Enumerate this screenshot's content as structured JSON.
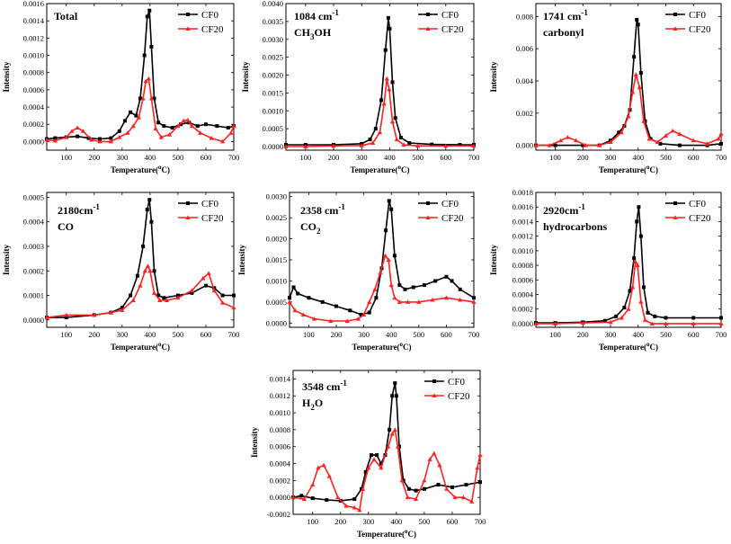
{
  "figure_colors": {
    "CF0": "#000000",
    "CF20": "#ff2020"
  },
  "chart_data": [
    {
      "type": "line",
      "panel": "total",
      "annotation": [
        "Total"
      ],
      "xlabel": "Temperature(°C)",
      "ylabel": "Intensity",
      "xlim": [
        30,
        700
      ],
      "xticks": [
        100,
        200,
        300,
        400,
        500,
        600,
        700
      ],
      "ylim": [
        -0.0001,
        0.0016
      ],
      "yticks": [
        0.0,
        0.0002,
        0.0004,
        0.0006,
        0.0008,
        0.001,
        0.0012,
        0.0014,
        0.0016
      ],
      "ytick_labels": [
        "0.0000",
        "0.0002",
        "0.0004",
        "0.0006",
        "0.0008",
        "0.0010",
        "0.0012",
        "0.0014",
        "0.0016"
      ],
      "legend_position": "top-right",
      "series": [
        {
          "name": "CF0",
          "color": "#000000",
          "x": [
            30,
            60,
            100,
            140,
            180,
            220,
            260,
            290,
            310,
            330,
            350,
            365,
            380,
            390,
            398,
            405,
            415,
            430,
            450,
            480,
            510,
            540,
            570,
            600,
            640,
            680,
            700
          ],
          "values": [
            3e-05,
            4e-05,
            5e-05,
            6e-05,
            4e-05,
            3e-05,
            4e-05,
            0.00012,
            0.00024,
            0.00034,
            0.0003,
            0.0005,
            0.001,
            0.00145,
            0.00152,
            0.0011,
            0.0005,
            0.00022,
            0.00018,
            0.00016,
            0.0002,
            0.00022,
            0.00018,
            0.0002,
            0.00018,
            0.00016,
            0.00018
          ]
        },
        {
          "name": "CF20",
          "color": "#ff2020",
          "x": [
            30,
            60,
            100,
            120,
            140,
            160,
            190,
            220,
            260,
            290,
            320,
            340,
            360,
            375,
            385,
            395,
            405,
            420,
            440,
            470,
            500,
            520,
            535,
            550,
            580,
            620,
            660,
            690,
            700
          ],
          "values": [
            2e-05,
            1e-05,
            5e-05,
            0.00012,
            0.00016,
            0.00012,
            2e-05,
            0.0,
            0.0,
            5e-05,
            0.0001,
            0.00018,
            0.00028,
            0.0005,
            0.0007,
            0.00073,
            0.0005,
            0.00015,
            5e-05,
            8e-05,
            0.00018,
            0.00024,
            0.00025,
            0.00018,
            0.0001,
            4e-05,
            0.0,
            0.0001,
            0.00018
          ]
        }
      ]
    },
    {
      "type": "line",
      "panel": "1084",
      "annotation": [
        "1084 cm-1",
        "CH3OH"
      ],
      "xlabel": "Temperature(°C)",
      "ylabel": "Intensity",
      "xlim": [
        30,
        700
      ],
      "xticks": [
        100,
        200,
        300,
        400,
        500,
        600,
        700
      ],
      "ylim": [
        -0.0001,
        0.004
      ],
      "yticks": [
        0.0,
        0.0005,
        0.001,
        0.0015,
        0.002,
        0.0025,
        0.003,
        0.0035,
        0.004
      ],
      "ytick_labels": [
        "0.0000",
        "0.0005",
        "0.0010",
        "0.0015",
        "0.0020",
        "0.0025",
        "0.0030",
        "0.0035",
        "0.0040"
      ],
      "legend_position": "top-right",
      "series": [
        {
          "name": "CF0",
          "color": "#000000",
          "x": [
            30,
            100,
            200,
            300,
            330,
            350,
            370,
            385,
            395,
            400,
            410,
            420,
            440,
            470,
            550,
            650,
            700
          ],
          "values": [
            5e-05,
            5e-05,
            5e-05,
            8e-05,
            0.0002,
            0.0005,
            0.0013,
            0.0027,
            0.0036,
            0.0033,
            0.0018,
            0.0008,
            0.00025,
            0.0001,
            6e-05,
            5e-05,
            5e-05
          ]
        },
        {
          "name": "CF20",
          "color": "#ff2020",
          "x": [
            30,
            100,
            200,
            300,
            340,
            365,
            380,
            390,
            398,
            410,
            425,
            450,
            500,
            600,
            700
          ],
          "values": [
            0.0,
            0.0,
            2e-05,
            3e-05,
            0.0001,
            0.0004,
            0.0012,
            0.0019,
            0.0016,
            0.0007,
            0.0002,
            5e-05,
            2e-05,
            2e-05,
            2e-05
          ]
        }
      ]
    },
    {
      "type": "line",
      "panel": "1741",
      "annotation": [
        "1741 cm-1",
        "carbonyl"
      ],
      "xlabel": "Temperature(°C)",
      "ylabel": "Intensity",
      "xlim": [
        30,
        700
      ],
      "xticks": [
        100,
        200,
        300,
        400,
        500,
        600,
        700
      ],
      "ylim": [
        -0.0003,
        0.0088
      ],
      "yticks": [
        0.0,
        0.002,
        0.004,
        0.006,
        0.008
      ],
      "ytick_labels": [
        "0.000",
        "0.002",
        "0.004",
        "0.006",
        "0.008"
      ],
      "legend_position": "top-right",
      "series": [
        {
          "name": "CF0",
          "color": "#000000",
          "x": [
            30,
            100,
            200,
            260,
            300,
            330,
            350,
            370,
            385,
            395,
            400,
            410,
            425,
            445,
            480,
            550,
            650,
            700
          ],
          "values": [
            0.0,
            0.0,
            0.0,
            0.0,
            0.0003,
            0.0008,
            0.0012,
            0.0022,
            0.0055,
            0.0078,
            0.0075,
            0.0045,
            0.0015,
            0.0004,
            0.0001,
            0.0,
            0.0,
            0.0001
          ]
        },
        {
          "name": "CF20",
          "color": "#ff2020",
          "x": [
            30,
            80,
            120,
            145,
            175,
            210,
            260,
            300,
            340,
            365,
            380,
            392,
            405,
            420,
            440,
            470,
            500,
            525,
            550,
            600,
            650,
            690,
            700
          ],
          "values": [
            0.0,
            0.0,
            0.0003,
            0.0005,
            0.0003,
            0.0,
            0.0,
            0.0002,
            0.0008,
            0.0018,
            0.0033,
            0.0044,
            0.0036,
            0.0015,
            0.0004,
            0.0002,
            0.0006,
            0.0009,
            0.0007,
            0.0003,
            0.0001,
            0.0004,
            0.0007
          ]
        }
      ]
    },
    {
      "type": "line",
      "panel": "2180",
      "annotation": [
        "2180cm-1",
        "CO"
      ],
      "xlabel": "Temperature(°C)",
      "ylabel": "Intensity",
      "xlim": [
        30,
        700
      ],
      "xticks": [
        100,
        200,
        300,
        400,
        500,
        600,
        700
      ],
      "ylim": [
        -3e-05,
        0.00052
      ],
      "yticks": [
        0.0,
        0.0001,
        0.0002,
        0.0003,
        0.0004,
        0.0005
      ],
      "ytick_labels": [
        "0.0000",
        "0.0001",
        "0.0002",
        "0.0003",
        "0.0004",
        "0.0005"
      ],
      "legend_position": "top-right",
      "series": [
        {
          "name": "CF0",
          "color": "#000000",
          "x": [
            30,
            100,
            200,
            260,
            300,
            330,
            355,
            375,
            390,
            398,
            405,
            415,
            430,
            450,
            500,
            550,
            600,
            630,
            660,
            700
          ],
          "values": [
            1e-05,
            1e-05,
            2e-05,
            3e-05,
            5e-05,
            0.0001,
            0.00018,
            0.0003,
            0.00045,
            0.00049,
            0.0004,
            0.0002,
            0.0001,
            9e-05,
            0.0001,
            0.00011,
            0.00014,
            0.00013,
            0.0001,
            0.0001
          ]
        },
        {
          "name": "CF20",
          "color": "#ff2020",
          "x": [
            30,
            100,
            200,
            260,
            300,
            340,
            365,
            382,
            392,
            400,
            415,
            435,
            460,
            500,
            550,
            590,
            610,
            630,
            660,
            700
          ],
          "values": [
            1e-05,
            2e-05,
            2e-05,
            3e-05,
            4e-05,
            8e-05,
            0.00014,
            0.0002,
            0.00022,
            0.0002,
            0.00011,
            8e-05,
            8e-05,
            9e-05,
            0.00012,
            0.00017,
            0.00019,
            0.00012,
            7e-05,
            5e-05
          ]
        }
      ]
    },
    {
      "type": "line",
      "panel": "2358",
      "annotation": [
        "2358 cm-1",
        "CO2"
      ],
      "xlabel": "Temperature(°C)",
      "ylabel": "Intensity",
      "xlim": [
        30,
        700
      ],
      "xticks": [
        100,
        200,
        300,
        400,
        500,
        600,
        700
      ],
      "ylim": [
        -0.0001,
        0.0031
      ],
      "yticks": [
        0.0,
        0.0005,
        0.001,
        0.0015,
        0.002,
        0.0025,
        0.003
      ],
      "ytick_labels": [
        "0.0000",
        "0.0005",
        "0.0010",
        "0.0015",
        "0.0020",
        "0.0025",
        "0.0030"
      ],
      "legend_position": "top-right",
      "series": [
        {
          "name": "CF0",
          "color": "#000000",
          "x": [
            30,
            45,
            60,
            100,
            150,
            200,
            250,
            290,
            320,
            345,
            365,
            380,
            392,
            400,
            412,
            430,
            450,
            480,
            520,
            560,
            600,
            620,
            650,
            700
          ],
          "values": [
            0.0006,
            0.00085,
            0.0007,
            0.0006,
            0.0005,
            0.0004,
            0.0003,
            0.0002,
            0.00025,
            0.0006,
            0.0013,
            0.0022,
            0.0029,
            0.0027,
            0.0016,
            0.0009,
            0.0008,
            0.00085,
            0.0009,
            0.001,
            0.0011,
            0.001,
            0.0008,
            0.0006
          ]
        },
        {
          "name": "CF20",
          "color": "#ff2020",
          "x": [
            30,
            50,
            80,
            120,
            180,
            240,
            280,
            300,
            320,
            340,
            360,
            378,
            390,
            400,
            412,
            430,
            460,
            500,
            550,
            600,
            650,
            700
          ],
          "values": [
            0.0005,
            0.0003,
            0.0002,
            0.0001,
            5e-05,
            5e-05,
            0.0001,
            0.0002,
            0.0005,
            0.0008,
            0.0012,
            0.0016,
            0.0015,
            0.0009,
            0.0006,
            0.0005,
            0.0005,
            0.0005,
            0.00055,
            0.0006,
            0.00055,
            0.0005
          ]
        }
      ]
    },
    {
      "type": "line",
      "panel": "2920",
      "annotation": [
        "2920cm-1",
        "hydrocarbons"
      ],
      "xlabel": "Temperature(°C)",
      "ylabel": "Intensity",
      "xlim": [
        30,
        700
      ],
      "xticks": [
        100,
        200,
        300,
        400,
        500,
        600,
        700
      ],
      "ylim": [
        -5e-05,
        0.0018
      ],
      "yticks": [
        0.0,
        0.0002,
        0.0004,
        0.0006,
        0.0008,
        0.001,
        0.0012,
        0.0014,
        0.0016,
        0.0018
      ],
      "ytick_labels": [
        "0.0000",
        "0.0002",
        "0.0004",
        "0.0006",
        "0.0008",
        "0.0010",
        "0.0012",
        "0.0014",
        "0.0016",
        "0.0018"
      ],
      "legend_position": "top-right",
      "series": [
        {
          "name": "CF0",
          "color": "#000000",
          "x": [
            30,
            100,
            200,
            280,
            320,
            350,
            370,
            385,
            395,
            402,
            410,
            420,
            435,
            460,
            500,
            600,
            700
          ],
          "values": [
            1e-05,
            1e-05,
            2e-05,
            4e-05,
            0.0001,
            0.00022,
            0.00045,
            0.0009,
            0.0014,
            0.0016,
            0.0012,
            0.0005,
            0.00015,
            0.0001,
            8e-05,
            8e-05,
            8e-05
          ]
        },
        {
          "name": "CF20",
          "color": "#ff2020",
          "x": [
            30,
            100,
            200,
            300,
            340,
            365,
            380,
            390,
            398,
            410,
            425,
            450,
            500,
            600,
            700
          ],
          "values": [
            0.0,
            0.0,
            1e-05,
            2e-05,
            8e-05,
            0.0002,
            0.0005,
            0.00085,
            0.0008,
            0.0003,
            5e-05,
            0.0,
            0.0,
            0.0,
            0.0
          ]
        }
      ]
    },
    {
      "type": "line",
      "panel": "3548",
      "annotation": [
        "3548 cm-1",
        "H2O"
      ],
      "xlabel": "Temperature(°C)",
      "ylabel": "Intensity",
      "xlim": [
        30,
        700
      ],
      "xticks": [
        100,
        200,
        300,
        400,
        500,
        600,
        700
      ],
      "ylim": [
        -0.0002,
        0.0015
      ],
      "yticks": [
        -0.0002,
        0.0,
        0.0002,
        0.0004,
        0.0006,
        0.0008,
        0.001,
        0.0012,
        0.0014
      ],
      "ytick_labels": [
        "-0.0002",
        "0.0000",
        "0.0002",
        "0.0004",
        "0.0006",
        "0.0008",
        "0.0010",
        "0.0012",
        "0.0014"
      ],
      "legend_position": "top-right",
      "series": [
        {
          "name": "CF0",
          "color": "#000000",
          "x": [
            30,
            60,
            100,
            150,
            200,
            250,
            275,
            290,
            310,
            330,
            345,
            360,
            375,
            385,
            395,
            400,
            410,
            425,
            445,
            470,
            500,
            550,
            600,
            650,
            700
          ],
          "values": [
            0.0,
            2e-05,
            -1e-05,
            -3e-05,
            -4e-05,
            -2e-05,
            0.0001,
            0.0003,
            0.0005,
            0.0005,
            0.0004,
            0.0005,
            0.0008,
            0.0012,
            0.00135,
            0.0012,
            0.0006,
            0.0002,
            0.0001,
            8e-05,
            0.0001,
            0.00015,
            0.00012,
            0.00015,
            0.00018
          ]
        },
        {
          "name": "CF20",
          "color": "#ff2020",
          "x": [
            30,
            70,
            100,
            120,
            140,
            160,
            190,
            220,
            250,
            268,
            280,
            300,
            320,
            345,
            370,
            385,
            395,
            405,
            420,
            440,
            470,
            500,
            520,
            535,
            555,
            580,
            610,
            640,
            670,
            690,
            700
          ],
          "values": [
            0.0,
            -2e-05,
            0.00015,
            0.00035,
            0.00038,
            0.00025,
            0.0,
            -0.0001,
            -0.00012,
            -0.00015,
            0.0001,
            0.00035,
            0.00045,
            0.00035,
            0.0006,
            0.00075,
            0.0008,
            0.0006,
            0.0002,
            0.0,
            -2e-05,
            0.0002,
            0.00045,
            0.00052,
            0.00038,
            0.0001,
            0.0,
            0.0,
            -5e-05,
            0.00035,
            0.0005
          ]
        }
      ]
    }
  ]
}
